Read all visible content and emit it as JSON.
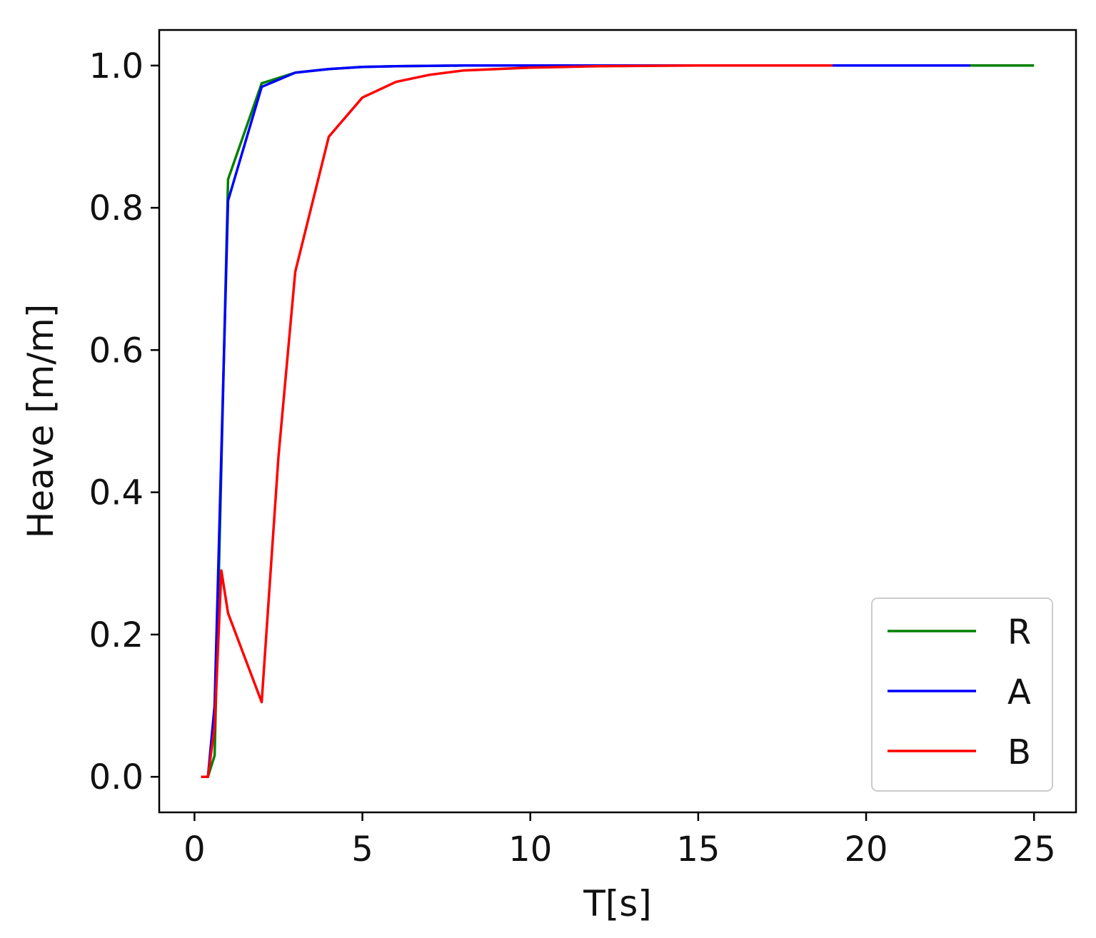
{
  "chart_data": {
    "type": "line",
    "title": "",
    "xlabel": "T[s]",
    "ylabel": "Heave [m/m]",
    "xlim": [
      -1.05,
      26.25
    ],
    "ylim": [
      -0.05,
      1.05
    ],
    "xticks": [
      0,
      5,
      10,
      15,
      20,
      25
    ],
    "yticks": [
      0.0,
      0.2,
      0.4,
      0.6,
      0.8,
      1.0
    ],
    "xtick_labels": [
      "0",
      "5",
      "10",
      "15",
      "20",
      "25"
    ],
    "ytick_labels": [
      "0.0",
      "0.2",
      "0.4",
      "0.6",
      "0.8",
      "1.0"
    ],
    "grid": false,
    "legend_position": "lower-right",
    "series": [
      {
        "name": "R",
        "color": "#008000",
        "x": [
          0.2,
          0.4,
          0.6,
          1.0,
          2.0,
          3.0,
          4.0,
          5.0,
          6.0,
          8.0,
          10.0,
          12.0,
          15.0,
          20.0,
          25.0
        ],
        "y": [
          0.0,
          0.0,
          0.03,
          0.84,
          0.975,
          0.99,
          0.995,
          0.998,
          0.999,
          1.0,
          1.0,
          1.0,
          1.0,
          1.0,
          1.0
        ]
      },
      {
        "name": "A",
        "color": "#0000ff",
        "x": [
          0.2,
          0.4,
          0.6,
          1.0,
          2.0,
          3.0,
          4.0,
          5.0,
          6.0,
          8.0,
          10.0,
          12.0,
          15.0,
          20.0,
          23.1
        ],
        "y": [
          0.0,
          0.0,
          0.1,
          0.81,
          0.97,
          0.99,
          0.995,
          0.998,
          0.999,
          1.0,
          1.0,
          1.0,
          1.0,
          1.0,
          1.0
        ]
      },
      {
        "name": "B",
        "color": "#ff0000",
        "x": [
          0.2,
          0.4,
          0.6,
          0.8,
          1.0,
          2.0,
          2.5,
          3.0,
          4.0,
          5.0,
          6.0,
          7.0,
          8.0,
          10.0,
          12.0,
          15.0,
          19.0
        ],
        "y": [
          0.0,
          0.0,
          0.07,
          0.29,
          0.23,
          0.105,
          0.45,
          0.71,
          0.9,
          0.955,
          0.977,
          0.987,
          0.993,
          0.997,
          0.999,
          1.0,
          1.0
        ]
      }
    ]
  }
}
